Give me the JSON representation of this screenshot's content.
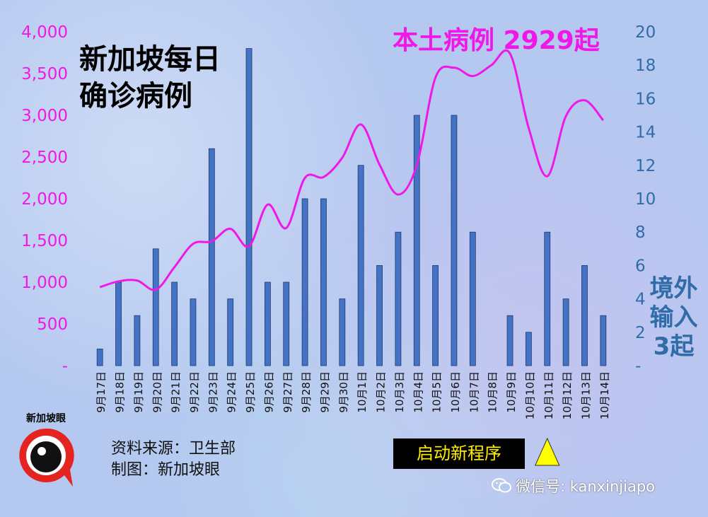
{
  "title": "新加坡每日\n确诊病例",
  "local_label": "本土病例 2929起",
  "import_label": "境外\n输入\n3起",
  "source_lines": [
    "资料来源：卫生部",
    "制图：新加坡眼"
  ],
  "banner": "启动新程序",
  "logo_text": "新加坡眼",
  "wechat": "微信号: kanxinjiapo",
  "colors": {
    "local_line": "#f018e8",
    "bars": "#4472c4",
    "left_axis": "#f018e8",
    "right_axis": "#2f6ca8",
    "banner_text": "#ffee00",
    "marker": "#ffff00"
  },
  "chart_data": {
    "type": "bar+line",
    "categories": [
      "9月17日",
      "9月18日",
      "9月19日",
      "9月20日",
      "9月21日",
      "9月22日",
      "9月23日",
      "9月24日",
      "9月25日",
      "9月26日",
      "9月27日",
      "9月28日",
      "9月29日",
      "9月30日",
      "10月1日",
      "10月2日",
      "10月3日",
      "10月4日",
      "10月5日",
      "10月6日",
      "10月7日",
      "10月8日",
      "10月9日",
      "10月10日",
      "10月11日",
      "10月12日",
      "10月13日",
      "10月14日"
    ],
    "series": [
      {
        "type": "line",
        "axis": "left",
        "values": [
          940,
          1010,
          1020,
          910,
          1180,
          1460,
          1490,
          1640,
          1430,
          1930,
          1650,
          2250,
          2260,
          2490,
          2890,
          2410,
          2050,
          2400,
          3450,
          3570,
          3470,
          3600,
          3740,
          2850,
          2270,
          2990,
          3180,
          2940
        ]
      },
      {
        "type": "bar",
        "axis": "right",
        "values": [
          1,
          5,
          3,
          7,
          5,
          4,
          13,
          4,
          19,
          5,
          5,
          10,
          10,
          4,
          12,
          6,
          8,
          15,
          6,
          15,
          8,
          0,
          3,
          2,
          8,
          4,
          6,
          3
        ]
      }
    ],
    "left_axis": {
      "ylim": [
        0,
        4000
      ],
      "ticks": [
        "-",
        "500",
        "1,000",
        "1,500",
        "2,000",
        "2,500",
        "3,000",
        "3,500",
        "4,000"
      ]
    },
    "right_axis": {
      "ylim": [
        0,
        20
      ],
      "ticks": [
        "-",
        "2",
        "4",
        "6",
        "8",
        "10",
        "12",
        "14",
        "16",
        "18",
        "20"
      ]
    },
    "annotation_marker_at": "10月11日"
  }
}
